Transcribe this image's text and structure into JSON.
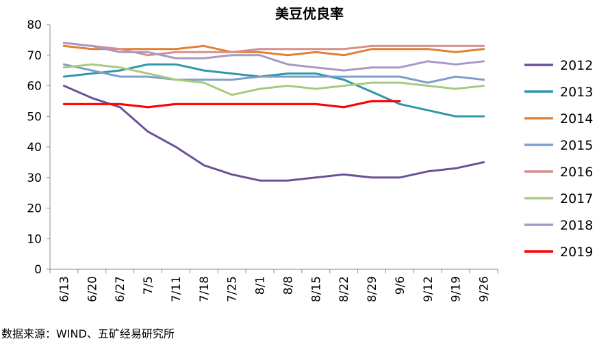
{
  "chart_data": {
    "type": "line",
    "title": "美豆优良率",
    "xlabel": "",
    "ylabel": "",
    "ylim": [
      0,
      80
    ],
    "yticks": [
      0,
      10,
      20,
      30,
      40,
      50,
      60,
      70,
      80
    ],
    "grid": false,
    "legend_position": "right",
    "categories": [
      "6/13",
      "6/20",
      "6/27",
      "7/5",
      "7/11",
      "7/18",
      "7/25",
      "8/1",
      "8/8",
      "8/15",
      "8/22",
      "8/29",
      "9/6",
      "9/12",
      "9/19",
      "9/26"
    ],
    "series": [
      {
        "name": "2012",
        "color": "#6b5097",
        "values": [
          60,
          56,
          53,
          45,
          40,
          34,
          31,
          29,
          29,
          30,
          31,
          30,
          30,
          32,
          33,
          35
        ]
      },
      {
        "name": "2013",
        "color": "#2f96ad",
        "values": [
          63,
          64,
          65,
          67,
          67,
          65,
          64,
          63,
          64,
          64,
          62,
          58,
          54,
          52,
          50,
          50
        ]
      },
      {
        "name": "2014",
        "color": "#e07f35",
        "values": [
          73,
          72,
          72,
          72,
          72,
          73,
          71,
          71,
          70,
          71,
          70,
          72,
          72,
          72,
          71,
          72
        ]
      },
      {
        "name": "2015",
        "color": "#7e9ec9",
        "values": [
          67,
          65,
          63,
          63,
          62,
          62,
          62,
          63,
          63,
          63,
          63,
          63,
          63,
          61,
          63,
          62
        ]
      },
      {
        "name": "2016",
        "color": "#d6908c",
        "values": [
          74,
          73,
          72,
          70,
          71,
          71,
          71,
          72,
          72,
          72,
          72,
          73,
          73,
          73,
          73,
          73
        ]
      },
      {
        "name": "2017",
        "color": "#a9c97f",
        "values": [
          66,
          67,
          66,
          64,
          62,
          61,
          57,
          59,
          60,
          59,
          60,
          61,
          61,
          60,
          59,
          60
        ]
      },
      {
        "name": "2018",
        "color": "#a898c6",
        "values": [
          74,
          73,
          71,
          71,
          69,
          69,
          70,
          70,
          67,
          66,
          65,
          66,
          66,
          68,
          67,
          68
        ]
      },
      {
        "name": "2019",
        "color": "#ff0000",
        "values": [
          54,
          54,
          54,
          53,
          54,
          54,
          54,
          54,
          54,
          54,
          53,
          55,
          55,
          null,
          null,
          null
        ]
      }
    ]
  },
  "source_text": "数据来源：WIND、五矿经易研究所"
}
